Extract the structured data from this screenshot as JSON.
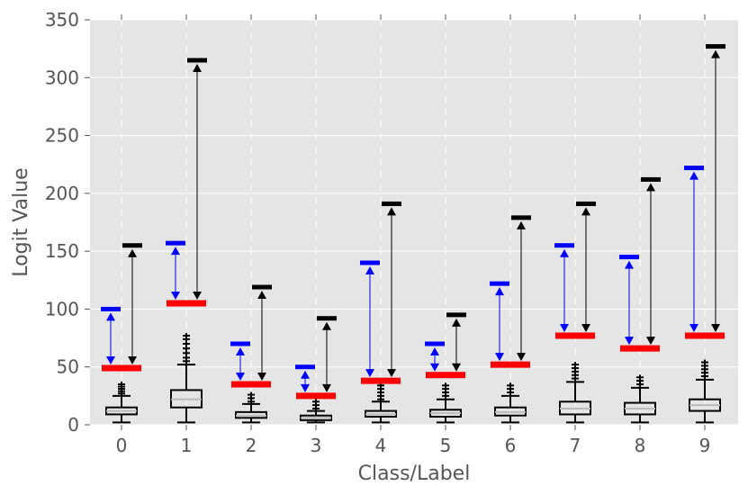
{
  "chart_data": {
    "type": "box",
    "title": "",
    "xlabel": "Class/Label",
    "ylabel": "Logit Value",
    "ylim": [
      0,
      350
    ],
    "yticks": [
      0,
      50,
      100,
      150,
      200,
      250,
      300,
      350
    ],
    "categories": [
      "0",
      "1",
      "2",
      "3",
      "4",
      "5",
      "6",
      "7",
      "8",
      "9"
    ],
    "grid": true,
    "background": "#e5e5e5",
    "box_stats": [
      {
        "whislo": 2,
        "q1": 9,
        "med": 12,
        "q3": 15,
        "whishi": 25,
        "outliers": [
          27,
          29,
          31,
          33,
          35
        ]
      },
      {
        "whislo": 2,
        "q1": 15,
        "med": 22,
        "q3": 30,
        "whishi": 52,
        "outliers": [
          55,
          58,
          62,
          66,
          70,
          74,
          77
        ]
      },
      {
        "whislo": 2,
        "q1": 6,
        "med": 8,
        "q3": 11,
        "whishi": 18,
        "outliers": [
          20,
          23,
          26
        ]
      },
      {
        "whislo": 2,
        "q1": 4,
        "med": 6,
        "q3": 8,
        "whishi": 12,
        "outliers": [
          14,
          17,
          20
        ]
      },
      {
        "whislo": 2,
        "q1": 7,
        "med": 9,
        "q3": 12,
        "whishi": 20,
        "outliers": [
          22,
          25,
          28,
          31,
          34
        ]
      },
      {
        "whislo": 2,
        "q1": 7,
        "med": 10,
        "q3": 13,
        "whishi": 22,
        "outliers": [
          25,
          28,
          31,
          34
        ]
      },
      {
        "whislo": 2,
        "q1": 8,
        "med": 11,
        "q3": 15,
        "whishi": 25,
        "outliers": [
          28,
          31,
          34
        ]
      },
      {
        "whislo": 2,
        "q1": 9,
        "med": 14,
        "q3": 20,
        "whishi": 37,
        "outliers": [
          40,
          43,
          46,
          49,
          52
        ]
      },
      {
        "whislo": 2,
        "q1": 9,
        "med": 14,
        "q3": 19,
        "whishi": 32,
        "outliers": [
          35,
          38,
          41
        ]
      },
      {
        "whislo": 2,
        "q1": 12,
        "med": 17,
        "q3": 22,
        "whishi": 39,
        "outliers": [
          42,
          45,
          48,
          51,
          54
        ]
      }
    ],
    "red_marker": [
      49,
      105,
      35,
      25,
      38,
      43,
      52,
      77,
      66,
      77
    ],
    "blue_marker": [
      100,
      157,
      70,
      50,
      140,
      70,
      122,
      155,
      145,
      222
    ],
    "black_marker": [
      155,
      315,
      119,
      92,
      191,
      95,
      179,
      191,
      212,
      327
    ],
    "colors": {
      "red_marker": "#ff0000",
      "blue_marker": "#0000ff",
      "black_marker": "#000000",
      "blue_arrow": "#0000ff",
      "black_arrow": "#000000"
    }
  }
}
